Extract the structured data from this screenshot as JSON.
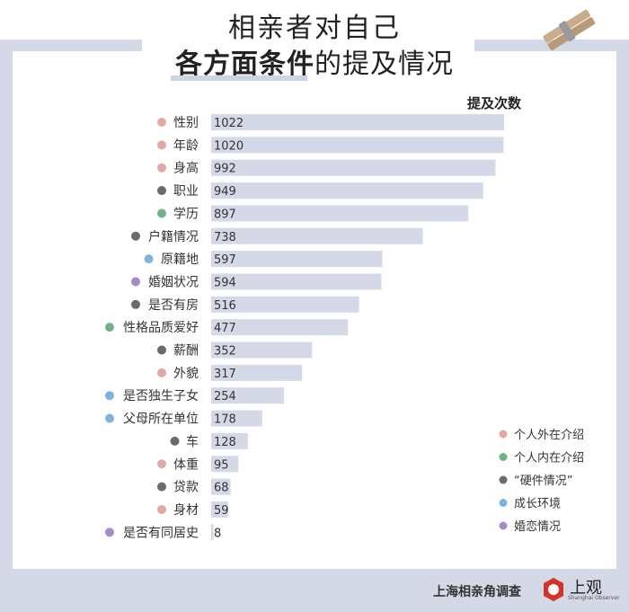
{
  "title": {
    "line1": "相亲者对自己",
    "line2_bold": "各方面条件",
    "line2_rest": "的提及情况"
  },
  "chart_data": {
    "type": "bar",
    "orientation": "horizontal",
    "value_header": "提及次数",
    "xlim": [
      0,
      1022
    ],
    "categories": [
      "性别",
      "年龄",
      "身高",
      "职业",
      "学历",
      "户籍情况",
      "原籍地",
      "婚姻状况",
      "是否有房",
      "性格品质爱好",
      "薪酬",
      "外貌",
      "是否独生子女",
      "父母所在单位",
      "车",
      "体重",
      "贷款",
      "身材",
      "是否有同居史"
    ],
    "values": [
      1022,
      1020,
      992,
      949,
      897,
      738,
      597,
      594,
      516,
      477,
      352,
      317,
      254,
      178,
      128,
      95,
      68,
      59,
      8
    ],
    "groups": [
      "外在",
      "外在",
      "外在",
      "硬件",
      "内在",
      "硬件",
      "成长",
      "婚恋",
      "硬件",
      "内在",
      "硬件",
      "外在",
      "成长",
      "成长",
      "硬件",
      "外在",
      "硬件",
      "外在",
      "婚恋"
    ],
    "legend_position": "bottom-right",
    "legend": [
      {
        "key": "外在",
        "label": "个人外在介绍",
        "color": "#e3a8a3"
      },
      {
        "key": "内在",
        "label": "个人内在介绍",
        "color": "#6fb28a"
      },
      {
        "key": "硬件",
        "label": "“硬件情况”",
        "color": "#6b6b6b"
      },
      {
        "key": "成长",
        "label": "成长环境",
        "color": "#7fb3dc"
      },
      {
        "key": "婚恋",
        "label": "婚恋情况",
        "color": "#a78bc4"
      }
    ],
    "bar_color": "#d5d9e7"
  },
  "footer": {
    "source": "上海相亲角调查",
    "logo_text": "上观",
    "logo_sub": "Shanghai Observer"
  }
}
